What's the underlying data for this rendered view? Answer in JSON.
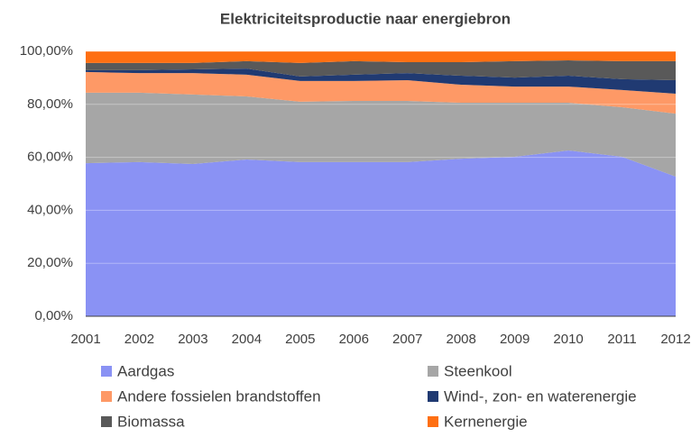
{
  "chart_data": {
    "type": "stacked_area_100",
    "title": "Elektriciteitsproductie naar energiebron",
    "categories": [
      "2001",
      "2002",
      "2003",
      "2004",
      "2005",
      "2006",
      "2007",
      "2008",
      "2009",
      "2010",
      "2011",
      "2012"
    ],
    "series": [
      {
        "name": "Aardgas",
        "color": "#8a92f4",
        "values": [
          57.8,
          58.2,
          57.5,
          59.2,
          58.2,
          58.2,
          58.2,
          59.5,
          60.2,
          62.6,
          60.2,
          52.7
        ]
      },
      {
        "name": "Steenkool",
        "color": "#a6a6a6",
        "values": [
          26.6,
          26.2,
          26.2,
          23.8,
          22.8,
          23.1,
          23.1,
          21.1,
          20.4,
          18.0,
          18.7,
          23.8
        ]
      },
      {
        "name": "Andere fossielen brandstoffen",
        "color": "#fe9966",
        "values": [
          7.8,
          7.4,
          8.1,
          8.2,
          7.8,
          7.5,
          7.8,
          6.8,
          6.1,
          6.1,
          6.5,
          7.5
        ]
      },
      {
        "name": "Wind-, zon- en waterenergie",
        "color": "#203a72",
        "values": [
          0.7,
          1.1,
          1.4,
          2.3,
          1.7,
          2.4,
          2.7,
          3.4,
          3.4,
          4.1,
          4.1,
          5.1
        ]
      },
      {
        "name": "Biomassa",
        "color": "#595959",
        "values": [
          2.7,
          2.7,
          2.4,
          2.8,
          5.1,
          5.1,
          4.1,
          5.1,
          6.2,
          5.8,
          6.8,
          7.2
        ]
      },
      {
        "name": "Kernenergie",
        "color": "#fe6f12",
        "values": [
          4.4,
          4.4,
          4.4,
          3.7,
          4.4,
          3.7,
          4.1,
          4.1,
          3.7,
          3.4,
          3.7,
          3.7
        ]
      }
    ],
    "ylim": [
      0,
      100
    ],
    "yticks": [
      {
        "value": 0,
        "label": "0,00%"
      },
      {
        "value": 20,
        "label": "20,00%"
      },
      {
        "value": 40,
        "label": "40,00%"
      },
      {
        "value": 60,
        "label": "60,00%"
      },
      {
        "value": 80,
        "label": "80,00%"
      },
      {
        "value": 100,
        "label": "100,00%"
      }
    ],
    "grid": true,
    "legend": "bottom"
  }
}
